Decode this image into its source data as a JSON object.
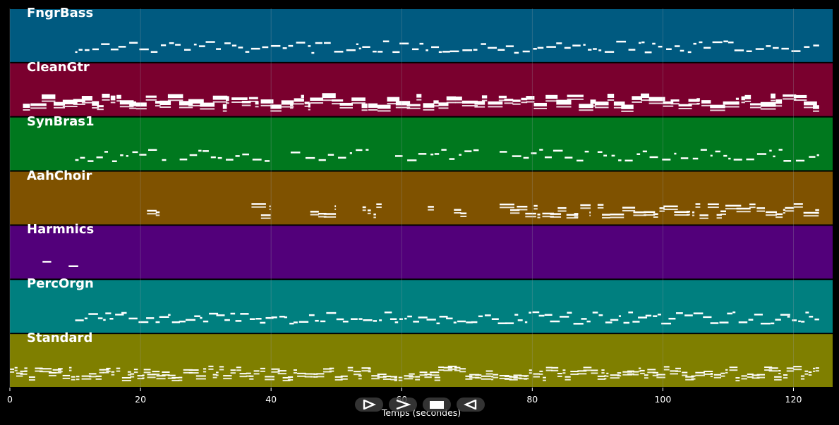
{
  "tracks": [
    {
      "name": "FngrBass",
      "color": "#005a80",
      "pattern": "bass"
    },
    {
      "name": "CleanGtr",
      "color": "#7a002e",
      "pattern": "guitar"
    },
    {
      "name": "SynBras1",
      "color": "#00781e",
      "pattern": "brass"
    },
    {
      "name": "AahChoir",
      "color": "#7f5200",
      "pattern": "choir"
    },
    {
      "name": "Harmnics",
      "color": "#52007a",
      "pattern": "harm"
    },
    {
      "name": "PercOrgn",
      "color": "#007f7f",
      "pattern": "organ"
    },
    {
      "name": "Standard",
      "color": "#7f7f00",
      "pattern": "drums"
    }
  ],
  "axis": {
    "xlabel": "Temps (secondes)",
    "ticks": [
      "0",
      "20",
      "40",
      "60",
      "80",
      "100",
      "120"
    ],
    "tick_values": [
      0,
      20,
      40,
      60,
      80,
      100,
      120
    ],
    "xlim": [
      0,
      126
    ]
  },
  "controls": [
    {
      "name": "play-button",
      "icon": "play-icon"
    },
    {
      "name": "forward-button",
      "icon": "forward-icon"
    },
    {
      "name": "stop-button",
      "icon": "stop-icon"
    },
    {
      "name": "back-button",
      "icon": "back-icon"
    }
  ],
  "colors": {
    "grid": "#9aa0a6",
    "note": "#ffffff",
    "background": "#000000"
  }
}
